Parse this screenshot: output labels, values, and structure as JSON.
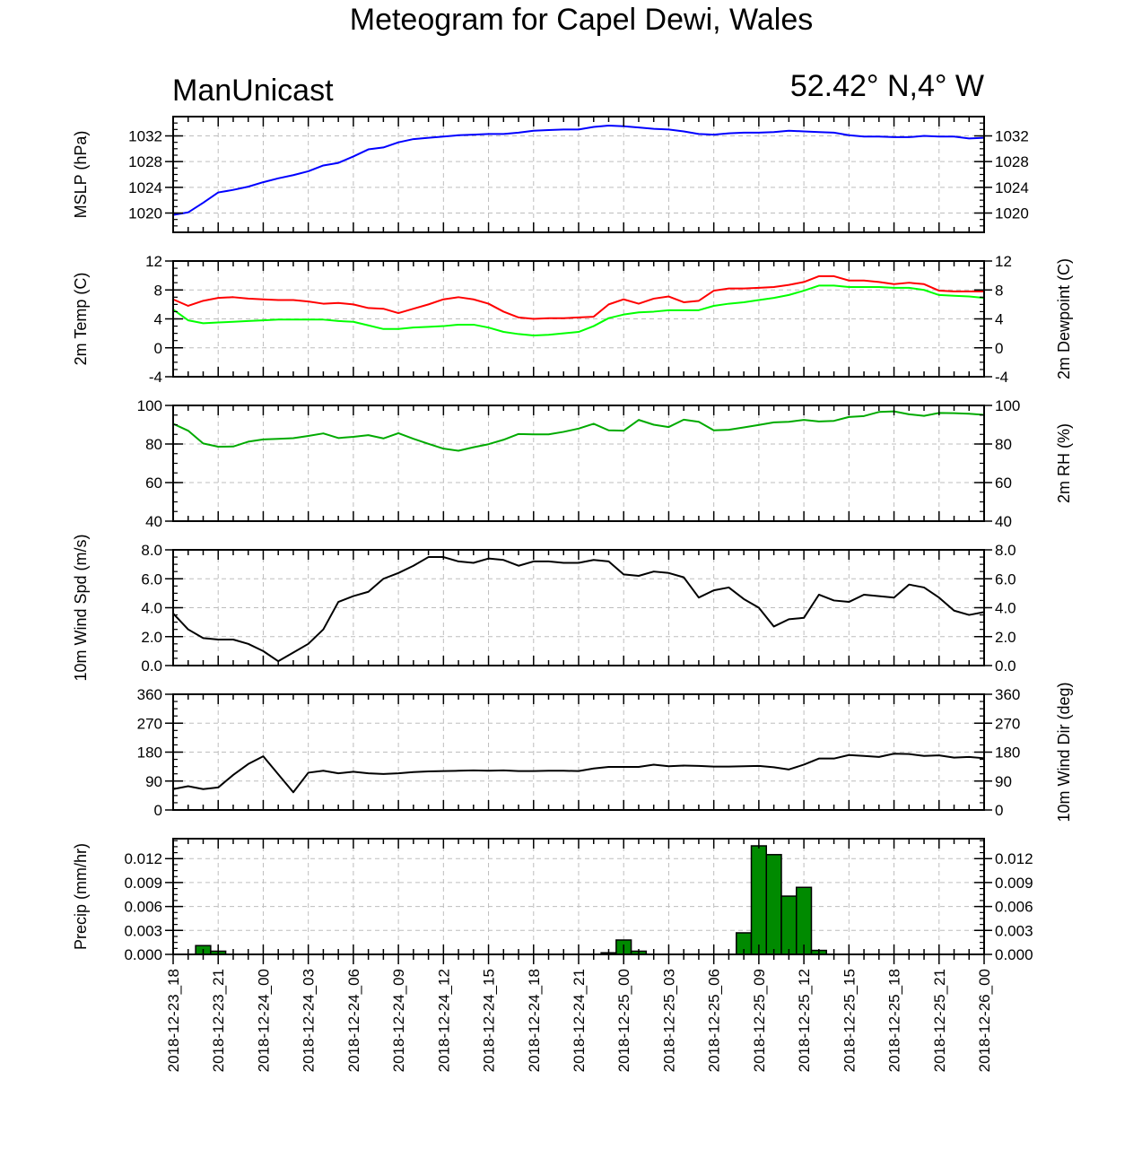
{
  "header": {
    "title": "Meteogram for Capel Dewi, Wales",
    "left_label": "ManUnicast",
    "right_label": "52.42° N,4° W"
  },
  "x_axis": {
    "n_points": 55,
    "ticks": [
      {
        "index": 0,
        "label": "2018-12-23_18"
      },
      {
        "index": 3,
        "label": "2018-12-23_21"
      },
      {
        "index": 6,
        "label": "2018-12-24_00"
      },
      {
        "index": 9,
        "label": "2018-12-24_03"
      },
      {
        "index": 12,
        "label": "2018-12-24_06"
      },
      {
        "index": 15,
        "label": "2018-12-24_09"
      },
      {
        "index": 18,
        "label": "2018-12-24_12"
      },
      {
        "index": 21,
        "label": "2018-12-24_15"
      },
      {
        "index": 24,
        "label": "2018-12-24_18"
      },
      {
        "index": 27,
        "label": "2018-12-24_21"
      },
      {
        "index": 30,
        "label": "2018-12-25_00"
      },
      {
        "index": 33,
        "label": "2018-12-25_03"
      },
      {
        "index": 36,
        "label": "2018-12-25_06"
      },
      {
        "index": 39,
        "label": "2018-12-25_09"
      },
      {
        "index": 42,
        "label": "2018-12-25_12"
      },
      {
        "index": 45,
        "label": "2018-12-25_15"
      },
      {
        "index": 48,
        "label": "2018-12-25_18"
      },
      {
        "index": 51,
        "label": "2018-12-25_21"
      },
      {
        "index": 54,
        "label": "2018-12-26_00"
      }
    ]
  },
  "chart_data": [
    {
      "type": "line",
      "ylabel": "MSLP (hPa)",
      "ylim": [
        1017,
        1035
      ],
      "yticks": [
        1020,
        1024,
        1028,
        1032
      ],
      "ytick_labels": [
        "1020",
        "1024",
        "1028",
        "1032"
      ],
      "right_labels": true,
      "right_ylabel": "",
      "grid": true,
      "series": [
        {
          "color": "#0000ff",
          "values": [
            1019.7,
            1020.1,
            1021.6,
            1023.2,
            1023.6,
            1024.1,
            1024.8,
            1025.4,
            1025.9,
            1026.5,
            1027.4,
            1027.8,
            1028.8,
            1029.9,
            1030.2,
            1031.0,
            1031.5,
            1031.7,
            1031.9,
            1032.1,
            1032.2,
            1032.3,
            1032.3,
            1032.5,
            1032.8,
            1032.9,
            1033.0,
            1033.0,
            1033.4,
            1033.6,
            1033.5,
            1033.3,
            1033.1,
            1033.0,
            1032.7,
            1032.3,
            1032.2,
            1032.4,
            1032.5,
            1032.5,
            1032.6,
            1032.8,
            1032.7,
            1032.6,
            1032.5,
            1032.1,
            1031.9,
            1031.9,
            1031.8,
            1031.8,
            1032.0,
            1031.9,
            1031.9,
            1031.6,
            1031.7
          ]
        }
      ]
    },
    {
      "type": "line",
      "ylabel": "2m Temp (C)",
      "ylim": [
        -4,
        12
      ],
      "yticks": [
        -4,
        0,
        4,
        8,
        12
      ],
      "ytick_labels": [
        "-4",
        "0",
        "4",
        "8",
        "12"
      ],
      "right_labels": true,
      "right_ylabel": "2m Dewpoint (C)",
      "grid": true,
      "series": [
        {
          "color": "#ff0000",
          "values": [
            6.7,
            5.8,
            6.5,
            6.9,
            7.0,
            6.8,
            6.7,
            6.6,
            6.6,
            6.4,
            6.1,
            6.2,
            6.0,
            5.5,
            5.4,
            4.8,
            5.4,
            6.0,
            6.7,
            7.0,
            6.7,
            6.1,
            5.0,
            4.2,
            4.0,
            4.1,
            4.1,
            4.2,
            4.3,
            6.0,
            6.7,
            6.1,
            6.8,
            7.1,
            6.3,
            6.5,
            7.9,
            8.2,
            8.2,
            8.3,
            8.4,
            8.7,
            9.1,
            9.9,
            9.9,
            9.3,
            9.3,
            9.1,
            8.8,
            9.0,
            8.8,
            7.9,
            7.8,
            7.8,
            7.8
          ]
        },
        {
          "color": "#00ff00",
          "values": [
            5.3,
            3.8,
            3.4,
            3.5,
            3.6,
            3.7,
            3.8,
            3.9,
            3.9,
            3.9,
            3.9,
            3.7,
            3.6,
            3.1,
            2.6,
            2.6,
            2.8,
            2.9,
            3.0,
            3.2,
            3.2,
            2.8,
            2.2,
            1.9,
            1.7,
            1.8,
            2.0,
            2.2,
            3.0,
            4.1,
            4.6,
            4.9,
            5.0,
            5.2,
            5.2,
            5.2,
            5.8,
            6.1,
            6.3,
            6.6,
            6.9,
            7.3,
            7.9,
            8.6,
            8.6,
            8.4,
            8.4,
            8.4,
            8.3,
            8.3,
            8.0,
            7.3,
            7.2,
            7.1,
            6.9
          ]
        }
      ]
    },
    {
      "type": "line",
      "ylabel": "",
      "ylim": [
        40,
        100
      ],
      "yticks": [
        40,
        60,
        80,
        100
      ],
      "ytick_labels": [
        "40",
        "60",
        "80",
        "100"
      ],
      "right_labels": true,
      "right_ylabel": "2m RH (%)",
      "grid": true,
      "series": [
        {
          "color": "#00aa00",
          "values": [
            90.5,
            86.9,
            80.3,
            78.6,
            78.7,
            81.2,
            82.4,
            82.7,
            83.0,
            84.2,
            85.5,
            83.1,
            83.7,
            84.6,
            82.9,
            85.6,
            82.7,
            80.1,
            77.6,
            76.5,
            78.3,
            79.9,
            82.2,
            85.2,
            85.0,
            85.0,
            86.3,
            88.0,
            90.5,
            87.1,
            86.9,
            92.5,
            90.0,
            88.8,
            92.6,
            91.5,
            87.1,
            87.4,
            88.6,
            89.9,
            91.2,
            91.5,
            92.5,
            91.7,
            92.0,
            94.0,
            94.5,
            96.6,
            96.9,
            95.4,
            94.6,
            96.1,
            96.0,
            95.7,
            95.1
          ]
        }
      ]
    },
    {
      "type": "line",
      "ylabel": "10m Wind Spd (m/s)",
      "ylim": [
        0,
        8
      ],
      "yticks": [
        0,
        2,
        4,
        6,
        8
      ],
      "ytick_labels": [
        "0.0",
        "2.0",
        "4.0",
        "6.0",
        "8.0"
      ],
      "right_labels": true,
      "right_ylabel": "",
      "grid": true,
      "series": [
        {
          "color": "#000000",
          "values": [
            3.6,
            2.5,
            1.9,
            1.8,
            1.8,
            1.5,
            1.0,
            0.3,
            0.9,
            1.5,
            2.5,
            4.4,
            4.8,
            5.1,
            6.0,
            6.4,
            6.9,
            7.5,
            7.5,
            7.2,
            7.1,
            7.4,
            7.3,
            6.9,
            7.2,
            7.2,
            7.1,
            7.1,
            7.3,
            7.2,
            6.3,
            6.2,
            6.5,
            6.4,
            6.1,
            4.7,
            5.2,
            5.4,
            4.6,
            4.0,
            2.7,
            3.2,
            3.3,
            4.9,
            4.5,
            4.4,
            4.9,
            4.8,
            4.7,
            5.6,
            5.4,
            4.7,
            3.8,
            3.5,
            3.7
          ]
        }
      ]
    },
    {
      "type": "line",
      "ylabel": "",
      "ylim": [
        0,
        360
      ],
      "yticks": [
        0,
        90,
        180,
        270,
        360
      ],
      "ytick_labels": [
        "0",
        "90",
        "180",
        "270",
        "360"
      ],
      "right_labels": true,
      "right_ylabel": "10m Wind Dir (deg)",
      "grid": true,
      "series": [
        {
          "color": "#000000",
          "values": [
            65,
            74,
            65,
            70,
            109,
            143,
            167,
            111,
            55,
            116,
            122,
            114,
            119,
            114,
            112,
            114,
            118,
            120,
            121,
            122,
            123,
            122,
            123,
            121,
            121,
            122,
            122,
            121,
            129,
            134,
            134,
            134,
            141,
            136,
            138,
            137,
            135,
            135,
            136,
            137,
            133,
            126,
            141,
            160,
            160,
            171,
            168,
            165,
            175,
            174,
            168,
            170,
            163,
            165,
            161
          ]
        }
      ]
    },
    {
      "type": "bar",
      "ylabel": "Precip (mm/hr)",
      "ylim": [
        0,
        0.0145
      ],
      "yticks": [
        0,
        0.003,
        0.006,
        0.009,
        0.012
      ],
      "ytick_labels": [
        "0.000",
        "0.003",
        "0.006",
        "0.009",
        "0.012"
      ],
      "right_labels": true,
      "right_ylabel": "",
      "grid": true,
      "bar_color": "#008a00",
      "series": [
        {
          "color": "#008a00",
          "values": [
            0,
            0,
            0.0011,
            0.0004,
            0,
            0,
            0,
            0,
            0,
            0,
            0,
            0,
            0,
            0,
            0,
            0,
            0,
            0,
            0,
            0,
            0,
            0,
            0,
            0,
            0,
            0,
            0,
            0,
            0,
            0.0002,
            0.0018,
            0.0004,
            0,
            0,
            0,
            0,
            0,
            0,
            0.0027,
            0.0136,
            0.0125,
            0.0073,
            0.0084,
            0.0005,
            0,
            0,
            0,
            0,
            0,
            0,
            0,
            0,
            0,
            0,
            0
          ]
        }
      ]
    }
  ]
}
